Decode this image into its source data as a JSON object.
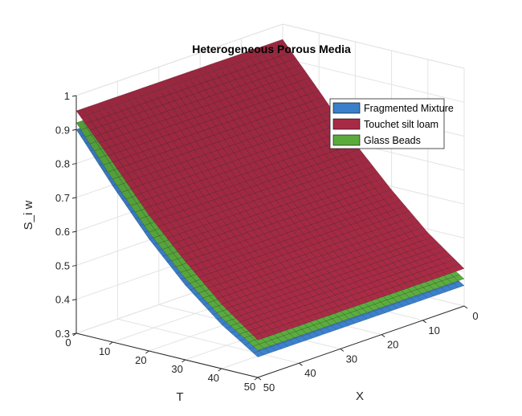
{
  "chart_data": {
    "type": "surface3d",
    "title": "Heterogeneous Porous Media",
    "xlabel": "X",
    "ylabel": "T",
    "zlabel": "S_i w",
    "xlim": [
      0,
      50
    ],
    "ylim": [
      0,
      50
    ],
    "zlim": [
      0.3,
      1
    ],
    "x_ticks": [
      0,
      10,
      20,
      30,
      40,
      50
    ],
    "y_ticks": [
      0,
      10,
      20,
      30,
      40,
      50
    ],
    "z_ticks": [
      0.3,
      0.4,
      0.5,
      0.6,
      0.7,
      0.8,
      0.9,
      1
    ],
    "x_tick_labels": [
      "0",
      "10",
      "20",
      "30",
      "40",
      "50"
    ],
    "y_tick_labels": [
      "0",
      "10",
      "20",
      "30",
      "40",
      "50"
    ],
    "z_tick_labels": [
      "0.3",
      "0.4",
      "0.5",
      "0.6",
      "0.7",
      "0.8",
      "0.9",
      "1"
    ],
    "grid": true,
    "legend_position": "top-right",
    "series": [
      {
        "name": "Fragmented Mixture",
        "color": "#3a7fc9",
        "description_points": [
          {
            "T": 0,
            "X": 0,
            "S": 0.9
          },
          {
            "T": 50,
            "X": 0,
            "S": 0.36
          },
          {
            "T": 0,
            "X": 50,
            "S": 0.9
          },
          {
            "T": 50,
            "X": 50,
            "S": 0.36
          }
        ],
        "t_values": [
          0,
          10,
          20,
          30,
          40,
          50
        ],
        "s_values": [
          0.9,
          0.76,
          0.63,
          0.52,
          0.43,
          0.36
        ]
      },
      {
        "name": "Touchet silt loam",
        "color": "#a82a45",
        "t_values": [
          0,
          10,
          20,
          30,
          40,
          50
        ],
        "s_values": [
          0.955,
          0.83,
          0.7,
          0.59,
          0.49,
          0.41
        ]
      },
      {
        "name": "Glass Beads",
        "color": "#5aaa3c",
        "t_values": [
          0,
          10,
          20,
          30,
          40,
          50
        ],
        "s_values": [
          0.92,
          0.78,
          0.65,
          0.54,
          0.45,
          0.38
        ]
      }
    ]
  }
}
